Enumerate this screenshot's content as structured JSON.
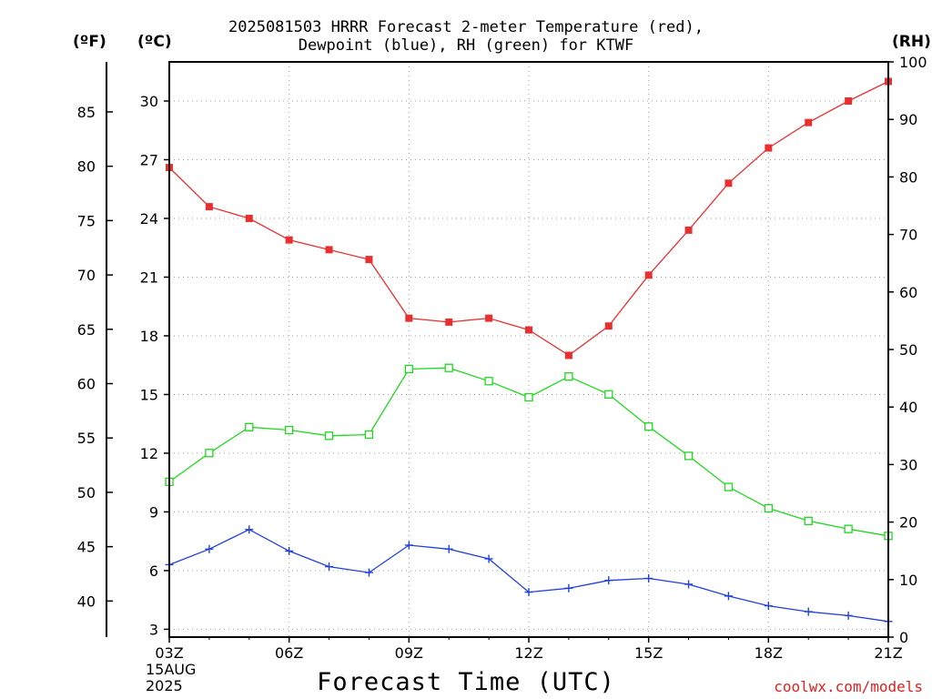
{
  "title_line1": "2025081503 HRRR Forecast 2-meter Temperature (red),",
  "title_line2": "Dewpoint (blue), RH (green) for KTWF",
  "unit_f": "(ºF)",
  "unit_c": "(ºC)",
  "unit_rh": "(RH)",
  "date_day": "15AUG",
  "date_year": "2025",
  "xaxis_title": "Forecast Time (UTC)",
  "credit": "coolwx.com/models",
  "chart_data": {
    "type": "line",
    "x": [
      3,
      4,
      5,
      6,
      7,
      8,
      9,
      10,
      11,
      12,
      13,
      14,
      15,
      16,
      17,
      18,
      19,
      20,
      21
    ],
    "x_ticks": [
      3,
      6,
      9,
      12,
      15,
      18,
      21
    ],
    "x_tick_labels": [
      "03Z",
      "06Z",
      "09Z",
      "12Z",
      "15Z",
      "18Z",
      "21Z"
    ],
    "xlim": [
      3,
      21
    ],
    "ylim_c": [
      2.6,
      32.0
    ],
    "yticks_c": [
      3,
      6,
      9,
      12,
      15,
      18,
      21,
      24,
      27,
      30
    ],
    "yticks_f": [
      40,
      45,
      50,
      55,
      60,
      65,
      70,
      75,
      80,
      85
    ],
    "ylim_rh": [
      0,
      100
    ],
    "yticks_rh": [
      0,
      10,
      20,
      30,
      40,
      50,
      60,
      70,
      80,
      90,
      100
    ],
    "grid": true,
    "colors": {
      "temperature": "#e83030",
      "dewpoint": "#2040e0",
      "rh": "#20d820"
    },
    "series": [
      {
        "key": "temperature",
        "axis": "C",
        "marker": "filled-square",
        "values": [
          26.6,
          24.6,
          24.0,
          22.9,
          22.4,
          21.9,
          18.9,
          18.7,
          18.9,
          18.3,
          17.0,
          18.5,
          21.1,
          23.4,
          25.8,
          27.6,
          28.9,
          30.0,
          31.0
        ]
      },
      {
        "key": "dewpoint",
        "axis": "C",
        "marker": "plus",
        "values": [
          6.3,
          7.1,
          8.1,
          7.0,
          6.2,
          5.9,
          7.3,
          7.1,
          6.6,
          4.9,
          5.1,
          5.5,
          5.6,
          5.3,
          4.7,
          4.2,
          3.9,
          3.7,
          3.4
        ]
      },
      {
        "key": "rh",
        "axis": "RH",
        "marker": "open-square",
        "values": [
          27.0,
          32.0,
          36.5,
          36.0,
          35.0,
          35.2,
          46.6,
          46.8,
          44.5,
          41.7,
          45.3,
          42.2,
          36.6,
          31.5,
          26.1,
          22.4,
          20.2,
          18.8,
          17.6
        ]
      }
    ]
  }
}
